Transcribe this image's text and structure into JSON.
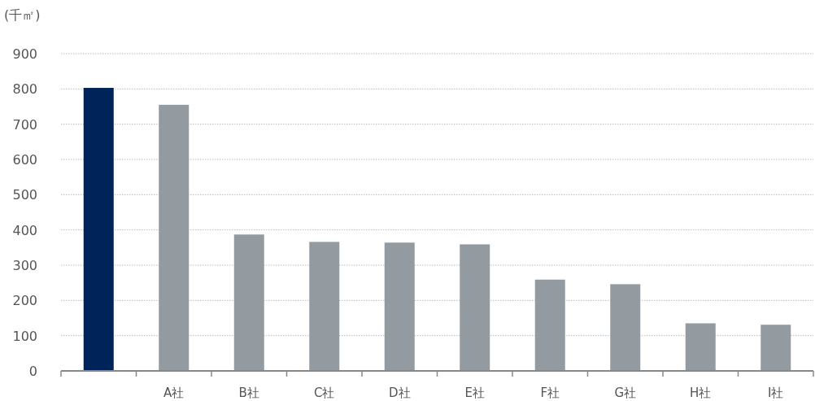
{
  "chart_data": {
    "type": "bar",
    "ylabel": "(千㎡)",
    "categories": [
      null,
      "A社",
      "B社",
      "C社",
      "D社",
      "E社",
      "F社",
      "G社",
      "H社",
      "I社"
    ],
    "values": [
      803,
      755,
      387,
      366,
      364,
      359,
      259,
      246,
      135,
      131
    ],
    "colors": [
      "#00235a",
      "#939aa0",
      "#939aa0",
      "#939aa0",
      "#939aa0",
      "#939aa0",
      "#939aa0",
      "#939aa0",
      "#939aa0",
      "#939aa0"
    ],
    "ylim": [
      0,
      900
    ],
    "yticks": [
      0,
      100,
      200,
      300,
      400,
      500,
      600,
      700,
      800,
      900
    ],
    "grid": "y"
  }
}
